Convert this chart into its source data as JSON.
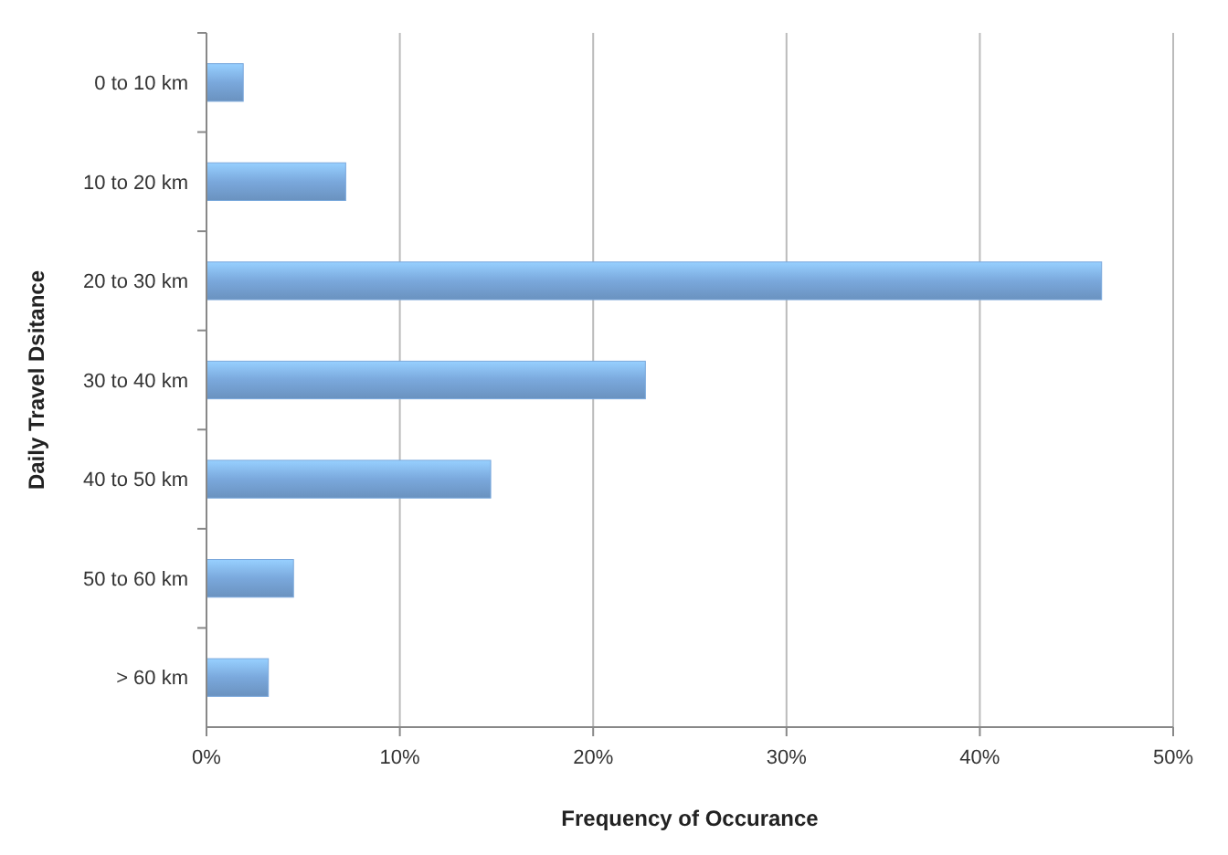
{
  "chart_data": {
    "type": "bar",
    "orientation": "horizontal",
    "xlabel": "Frequency of Occurance",
    "ylabel": "Daily Travel Dsitance",
    "categories": [
      "0 to 10 km",
      "10 to 20 km",
      "20 to 30 km",
      "30 to 40 km",
      "40 to 50 km",
      "50 to 60 km",
      "> 60 km"
    ],
    "values": [
      1.9,
      7.2,
      46.3,
      22.7,
      14.7,
      4.5,
      3.2
    ],
    "color": "#7aa8dc",
    "xlim": [
      0,
      50
    ],
    "xticks": [
      {
        "value": 0,
        "label": "0%"
      },
      {
        "value": 10,
        "label": "10%"
      },
      {
        "value": 20,
        "label": "20%"
      },
      {
        "value": 30,
        "label": "30%"
      },
      {
        "value": 40,
        "label": "40%"
      },
      {
        "value": 50,
        "label": "50%"
      }
    ],
    "grid": "x"
  }
}
